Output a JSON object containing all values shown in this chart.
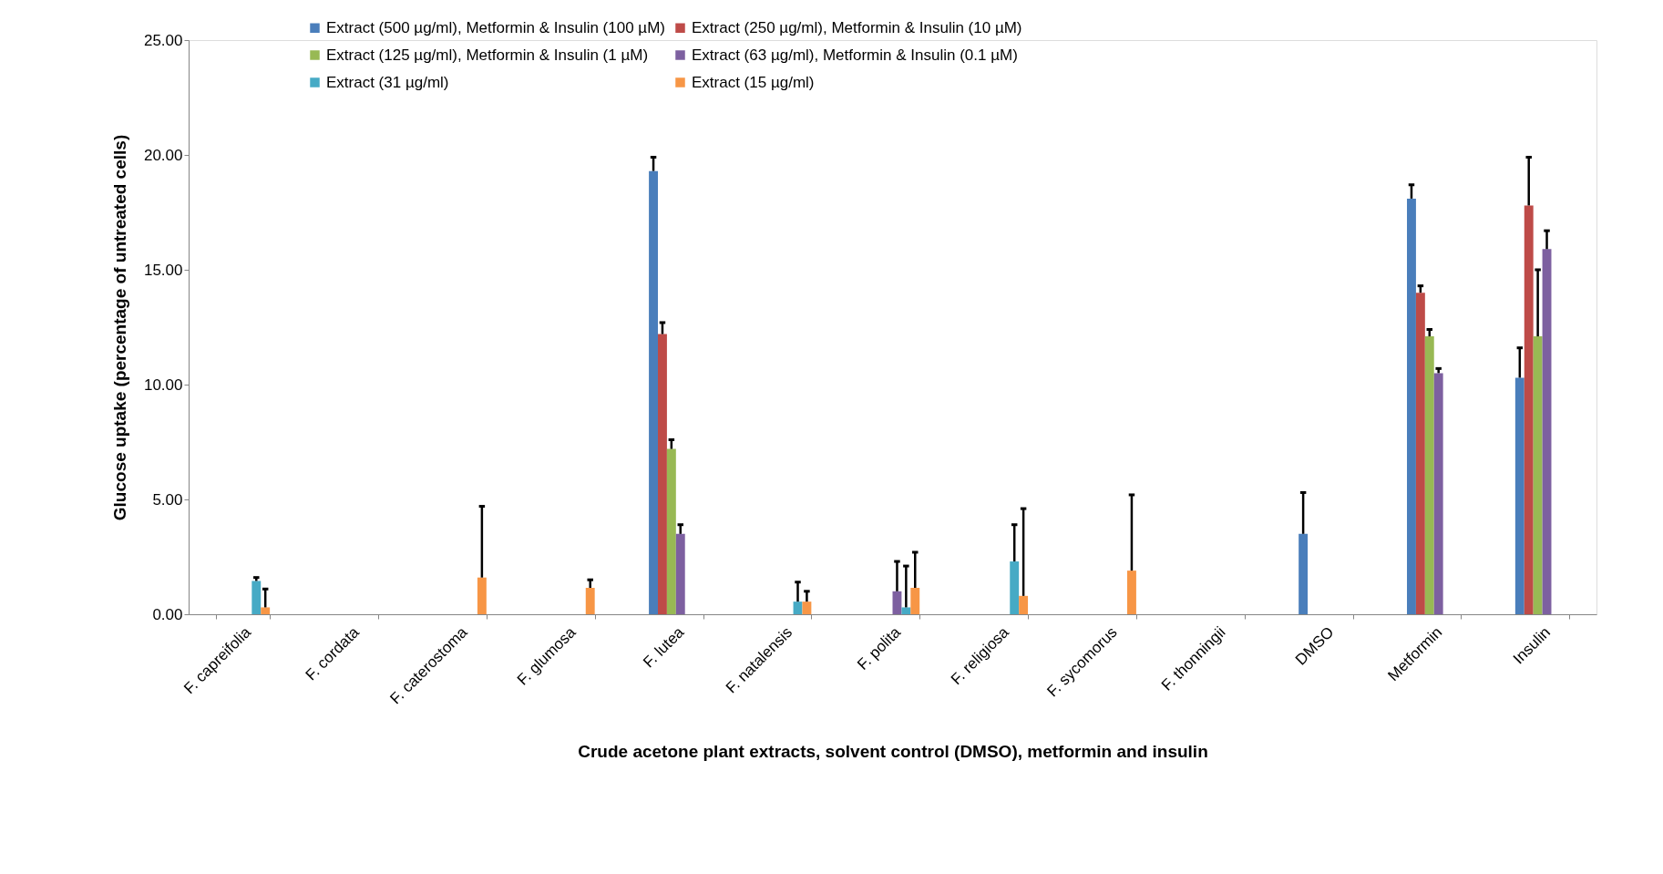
{
  "chart_data": {
    "type": "bar",
    "xlabel": "Crude acetone plant extracts, solvent control (DMSO), metformin and insulin",
    "ylabel": "Glucose uptake (percentage of untreated cells)",
    "categories": [
      "F. capreifolia",
      "F. cordata",
      "F. caterostoma",
      "F. glumosa",
      "F. lutea",
      "F. natalensis",
      "F. polita",
      "F. religiosa",
      "F. sycomorus",
      "F. thonningii",
      "DMSO",
      "Metformin",
      "Insulin"
    ],
    "ylim": [
      0,
      25
    ],
    "yticks": [
      {
        "value": 0,
        "label": "0.00"
      },
      {
        "value": 5,
        "label": "5.00"
      },
      {
        "value": 10,
        "label": "10.00"
      },
      {
        "value": 15,
        "label": "15.00"
      },
      {
        "value": 20,
        "label": "20.00"
      },
      {
        "value": 25,
        "label": "25.00"
      }
    ],
    "grid": false,
    "legend": "top",
    "series": [
      {
        "name": "Extract (500 µg/ml), Metformin & Insulin (100 µM)",
        "color": "#4a7ebb",
        "values": [
          null,
          null,
          null,
          null,
          19.3,
          null,
          null,
          null,
          null,
          null,
          3.5,
          18.1,
          10.3
        ],
        "errors": [
          null,
          null,
          null,
          null,
          [
            19.3,
            19.9
          ],
          null,
          null,
          null,
          null,
          null,
          [
            3.5,
            5.3
          ],
          [
            18.1,
            18.7
          ],
          [
            10.3,
            11.6
          ]
        ]
      },
      {
        "name": "Extract (250 µg/ml), Metformin & Insulin (10 µM)",
        "color": "#be4b48",
        "values": [
          null,
          null,
          null,
          null,
          12.2,
          null,
          null,
          null,
          null,
          null,
          null,
          14.0,
          17.8
        ],
        "errors": [
          null,
          null,
          null,
          null,
          [
            12.2,
            12.7
          ],
          null,
          null,
          null,
          null,
          null,
          null,
          [
            14.0,
            14.3
          ],
          [
            17.8,
            19.9
          ]
        ]
      },
      {
        "name": "Extract (125 µg/ml), Metformin & Insulin (1 µM)",
        "color": "#98b954",
        "values": [
          null,
          null,
          null,
          null,
          7.2,
          null,
          null,
          null,
          null,
          null,
          null,
          12.1,
          12.1
        ],
        "errors": [
          null,
          null,
          null,
          null,
          [
            7.2,
            7.6
          ],
          null,
          null,
          null,
          null,
          null,
          null,
          [
            12.1,
            12.4
          ],
          [
            12.1,
            15.0
          ]
        ]
      },
      {
        "name": "Extract (63 µg/ml), Metformin & Insulin (0.1 µM)",
        "color": "#7d60a0",
        "values": [
          null,
          null,
          null,
          null,
          3.5,
          null,
          1.0,
          null,
          null,
          null,
          null,
          10.5,
          15.9
        ],
        "errors": [
          null,
          null,
          null,
          null,
          [
            3.5,
            3.9
          ],
          null,
          [
            1.0,
            2.3
          ],
          null,
          null,
          null,
          null,
          [
            10.5,
            10.7
          ],
          [
            15.9,
            16.7
          ]
        ]
      },
      {
        "name": "Extract (31 µg/ml)",
        "color": "#46aac5",
        "values": [
          1.45,
          null,
          null,
          null,
          null,
          0.55,
          0.3,
          2.3,
          null,
          null,
          null,
          null,
          null
        ],
        "errors": [
          [
            1.45,
            1.6
          ],
          null,
          null,
          null,
          null,
          [
            0.55,
            1.4
          ],
          [
            0.3,
            2.1
          ],
          [
            2.3,
            3.9
          ],
          null,
          null,
          null,
          null,
          null
        ]
      },
      {
        "name": "Extract (15 µg/ml)",
        "color": "#f79646",
        "values": [
          0.3,
          null,
          1.6,
          1.15,
          null,
          0.55,
          1.15,
          0.8,
          1.9,
          null,
          null,
          null,
          null
        ],
        "errors": [
          [
            0.3,
            1.1
          ],
          null,
          [
            1.6,
            4.7
          ],
          [
            1.15,
            1.5
          ],
          null,
          [
            0.55,
            1.0
          ],
          [
            1.15,
            2.7
          ],
          [
            0.8,
            4.6
          ],
          [
            1.9,
            5.2
          ],
          null,
          null,
          null,
          null
        ]
      }
    ]
  }
}
